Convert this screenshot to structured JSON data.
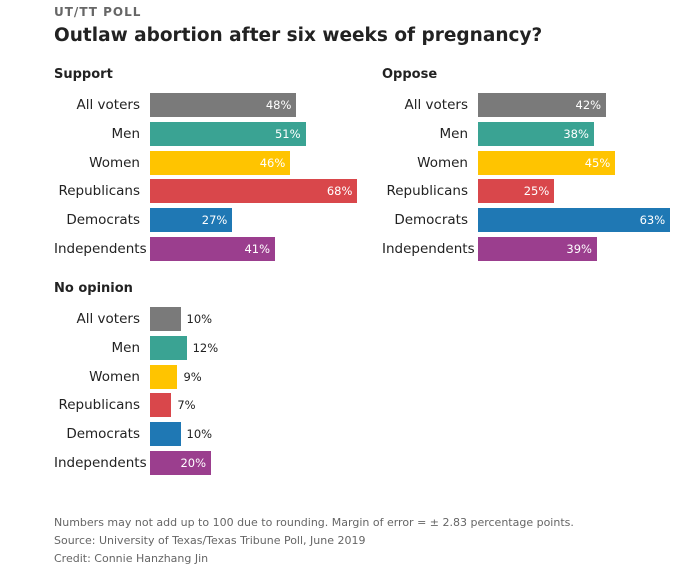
{
  "kicker": "UT/TT POLL",
  "headline": "Outlaw abortion after six weeks of pregnancy?",
  "chart_data": [
    {
      "type": "bar",
      "title": "Support",
      "categories": [
        "All voters",
        "Men",
        "Women",
        "Republicans",
        "Democrats",
        "Independents"
      ],
      "values": [
        48,
        51,
        46,
        68,
        27,
        41
      ],
      "labels": [
        "48%",
        "51%",
        "46%",
        "68%",
        "27%",
        "41%"
      ],
      "colors": [
        "#7a7a7a",
        "#3aa393",
        "#ffc400",
        "#d9474b",
        "#1f78b4",
        "#9b3e8e"
      ]
    },
    {
      "type": "bar",
      "title": "Oppose",
      "categories": [
        "All voters",
        "Men",
        "Women",
        "Republicans",
        "Democrats",
        "Independents"
      ],
      "values": [
        42,
        38,
        45,
        25,
        63,
        39
      ],
      "labels": [
        "42%",
        "38%",
        "45%",
        "25%",
        "63%",
        "39%"
      ],
      "colors": [
        "#7a7a7a",
        "#3aa393",
        "#ffc400",
        "#d9474b",
        "#1f78b4",
        "#9b3e8e"
      ]
    },
    {
      "type": "bar",
      "title": "No opinion",
      "categories": [
        "All voters",
        "Men",
        "Women",
        "Republicans",
        "Democrats",
        "Independents"
      ],
      "values": [
        10,
        12,
        9,
        7,
        10,
        20
      ],
      "labels": [
        "10%",
        "12%",
        "9%",
        "7%",
        "10%",
        "20%"
      ],
      "colors": [
        "#7a7a7a",
        "#3aa393",
        "#ffc400",
        "#d9474b",
        "#1f78b4",
        "#9b3e8e"
      ]
    }
  ],
  "footer": {
    "note": "Numbers may not add up to 100 due to rounding. Margin of error = ± 2.83 percentage points.",
    "source": "Source: University of Texas/Texas Tribune Poll, June 2019",
    "credit": "Credit: Connie Hanzhang Jin"
  }
}
